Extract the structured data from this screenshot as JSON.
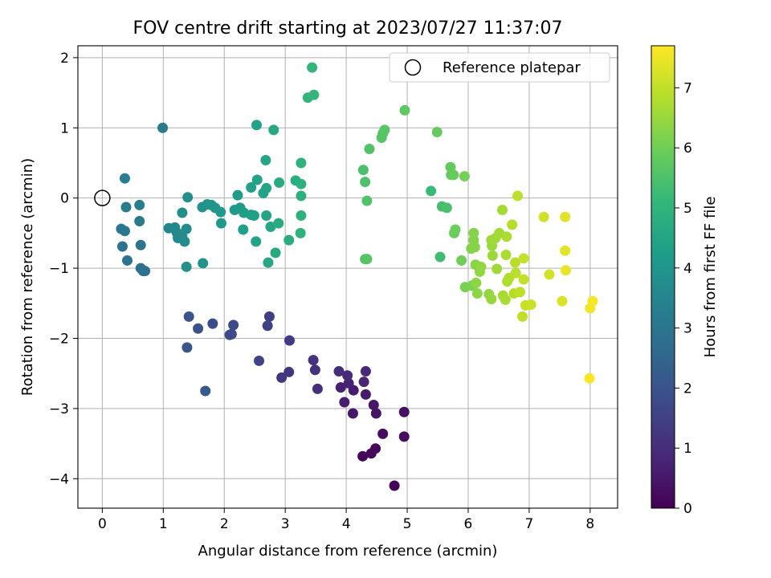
{
  "chart_data": {
    "type": "scatter",
    "title": "FOV centre drift starting at 2023/07/27 11:37:07",
    "xlabel": "Angular distance from reference (arcmin)",
    "ylabel": "Rotation from reference (arcmin)",
    "xlim": [
      -0.4,
      8.45
    ],
    "ylim": [
      -4.42,
      2.17
    ],
    "xticks": [
      0,
      1,
      2,
      3,
      4,
      5,
      6,
      7,
      8
    ],
    "yticks": [
      -4,
      -3,
      -2,
      -1,
      0,
      1,
      2
    ],
    "grid": true,
    "legend": {
      "position": "upper right",
      "entries": [
        {
          "label": "Reference platepar",
          "marker": "open-circle"
        }
      ]
    },
    "reference_point": {
      "x": 0,
      "y": 0
    },
    "colorbar": {
      "label": "Hours from first FF file",
      "range": [
        0,
        7.7
      ],
      "ticks": [
        0,
        1,
        2,
        3,
        4,
        5,
        6,
        7
      ],
      "colormap": "viridis",
      "stops": [
        "#440154",
        "#482878",
        "#3e4989",
        "#31688e",
        "#26828e",
        "#1f9e89",
        "#35b779",
        "#6ece58",
        "#b5de2b",
        "#fde725"
      ]
    },
    "points": [
      {
        "x": 4.79,
        "y": -4.1,
        "h": 0.05
      },
      {
        "x": 4.27,
        "y": -3.68,
        "h": 0.1
      },
      {
        "x": 4.41,
        "y": -3.64,
        "h": 0.15
      },
      {
        "x": 4.48,
        "y": -3.57,
        "h": 0.2
      },
      {
        "x": 4.6,
        "y": -3.36,
        "h": 0.25
      },
      {
        "x": 4.95,
        "y": -3.4,
        "h": 0.3
      },
      {
        "x": 4.95,
        "y": -3.05,
        "h": 0.35
      },
      {
        "x": 4.49,
        "y": -3.07,
        "h": 0.4
      },
      {
        "x": 4.45,
        "y": -2.95,
        "h": 0.45
      },
      {
        "x": 4.11,
        "y": -3.07,
        "h": 0.5
      },
      {
        "x": 4.32,
        "y": -2.8,
        "h": 0.55
      },
      {
        "x": 4.12,
        "y": -2.74,
        "h": 0.6
      },
      {
        "x": 3.97,
        "y": -2.91,
        "h": 0.65
      },
      {
        "x": 3.91,
        "y": -2.7,
        "h": 0.7
      },
      {
        "x": 4.04,
        "y": -2.64,
        "h": 0.75
      },
      {
        "x": 4.29,
        "y": -2.62,
        "h": 0.8
      },
      {
        "x": 4.32,
        "y": -2.47,
        "h": 0.85
      },
      {
        "x": 4.02,
        "y": -2.53,
        "h": 0.9
      },
      {
        "x": 3.88,
        "y": -2.47,
        "h": 0.95
      },
      {
        "x": 3.53,
        "y": -2.72,
        "h": 1.0
      },
      {
        "x": 3.49,
        "y": -2.45,
        "h": 1.1
      },
      {
        "x": 3.46,
        "y": -2.31,
        "h": 1.15
      },
      {
        "x": 3.06,
        "y": -2.48,
        "h": 1.2
      },
      {
        "x": 2.94,
        "y": -2.56,
        "h": 1.25
      },
      {
        "x": 3.07,
        "y": -2.03,
        "h": 1.35
      },
      {
        "x": 2.74,
        "y": -1.69,
        "h": 1.45
      },
      {
        "x": 2.71,
        "y": -1.82,
        "h": 1.5
      },
      {
        "x": 2.57,
        "y": -2.32,
        "h": 1.55
      },
      {
        "x": 2.12,
        "y": -1.94,
        "h": 1.65
      },
      {
        "x": 2.09,
        "y": -1.95,
        "h": 1.7
      },
      {
        "x": 2.15,
        "y": -1.81,
        "h": 1.75
      },
      {
        "x": 1.81,
        "y": -1.79,
        "h": 1.85
      },
      {
        "x": 1.57,
        "y": -1.86,
        "h": 1.95
      },
      {
        "x": 1.42,
        "y": -1.69,
        "h": 2.0
      },
      {
        "x": 1.39,
        "y": -2.13,
        "h": 2.05
      },
      {
        "x": 1.69,
        "y": -2.75,
        "h": 2.15
      },
      {
        "x": 0.67,
        "y": -1.04,
        "h": 2.75
      },
      {
        "x": 0.7,
        "y": -1.04,
        "h": 2.8
      },
      {
        "x": 0.63,
        "y": -1.0,
        "h": 2.85
      },
      {
        "x": 0.41,
        "y": -0.89,
        "h": 2.9
      },
      {
        "x": 0.33,
        "y": -0.69,
        "h": 2.95
      },
      {
        "x": 0.63,
        "y": -0.67,
        "h": 3.0
      },
      {
        "x": 0.37,
        "y": -0.47,
        "h": 3.05
      },
      {
        "x": 0.31,
        "y": -0.44,
        "h": 3.1
      },
      {
        "x": 0.61,
        "y": -0.33,
        "h": 3.15
      },
      {
        "x": 0.39,
        "y": -0.13,
        "h": 3.2
      },
      {
        "x": 0.61,
        "y": -0.1,
        "h": 3.25
      },
      {
        "x": 0.37,
        "y": 0.28,
        "h": 3.3
      },
      {
        "x": 0.99,
        "y": 1.0,
        "h": 3.15
      },
      {
        "x": 1.09,
        "y": -0.43,
        "h": 3.5
      },
      {
        "x": 1.19,
        "y": -0.42,
        "h": 3.55
      },
      {
        "x": 1.22,
        "y": -0.49,
        "h": 3.6
      },
      {
        "x": 1.24,
        "y": -0.57,
        "h": 3.65
      },
      {
        "x": 1.31,
        "y": -0.55,
        "h": 3.7
      },
      {
        "x": 1.35,
        "y": -0.62,
        "h": 3.72
      },
      {
        "x": 1.38,
        "y": -0.44,
        "h": 3.75
      },
      {
        "x": 1.31,
        "y": -0.21,
        "h": 3.78
      },
      {
        "x": 1.4,
        "y": 0.01,
        "h": 3.8
      },
      {
        "x": 1.38,
        "y": -0.98,
        "h": 3.85
      },
      {
        "x": 1.65,
        "y": -0.93,
        "h": 3.95
      },
      {
        "x": 1.64,
        "y": -0.13,
        "h": 3.9
      },
      {
        "x": 1.72,
        "y": -0.09,
        "h": 3.95
      },
      {
        "x": 1.79,
        "y": -0.1,
        "h": 4.0
      },
      {
        "x": 1.85,
        "y": -0.14,
        "h": 4.05
      },
      {
        "x": 1.94,
        "y": -0.2,
        "h": 4.1
      },
      {
        "x": 1.95,
        "y": -0.36,
        "h": 4.12
      },
      {
        "x": 2.17,
        "y": -0.17,
        "h": 4.15
      },
      {
        "x": 2.22,
        "y": 0.04,
        "h": 4.18
      },
      {
        "x": 2.26,
        "y": -0.14,
        "h": 4.2
      },
      {
        "x": 2.32,
        "y": -0.21,
        "h": 4.25
      },
      {
        "x": 2.31,
        "y": -0.45,
        "h": 4.3
      },
      {
        "x": 2.44,
        "y": -0.24,
        "h": 4.32
      },
      {
        "x": 2.49,
        "y": -0.25,
        "h": 4.35
      },
      {
        "x": 2.52,
        "y": -0.62,
        "h": 4.4
      },
      {
        "x": 2.44,
        "y": 0.15,
        "h": 4.38
      },
      {
        "x": 2.54,
        "y": 0.26,
        "h": 4.42
      },
      {
        "x": 2.64,
        "y": 0.07,
        "h": 4.45
      },
      {
        "x": 2.69,
        "y": 0.14,
        "h": 4.48
      },
      {
        "x": 2.69,
        "y": -0.25,
        "h": 4.5
      },
      {
        "x": 2.76,
        "y": -0.41,
        "h": 4.52
      },
      {
        "x": 2.72,
        "y": -0.92,
        "h": 4.55
      },
      {
        "x": 2.68,
        "y": 0.54,
        "h": 4.55
      },
      {
        "x": 2.53,
        "y": 1.04,
        "h": 4.4
      },
      {
        "x": 2.81,
        "y": 0.97,
        "h": 4.6
      },
      {
        "x": 2.84,
        "y": -0.78,
        "h": 4.65
      },
      {
        "x": 2.89,
        "y": -0.36,
        "h": 4.68
      },
      {
        "x": 2.9,
        "y": 0.22,
        "h": 4.7
      },
      {
        "x": 3.06,
        "y": -0.6,
        "h": 4.75
      },
      {
        "x": 3.17,
        "y": 0.25,
        "h": 4.8
      },
      {
        "x": 3.26,
        "y": 0.2,
        "h": 4.85
      },
      {
        "x": 3.26,
        "y": 0.03,
        "h": 4.88
      },
      {
        "x": 3.26,
        "y": -0.25,
        "h": 4.9
      },
      {
        "x": 3.25,
        "y": -0.5,
        "h": 4.92
      },
      {
        "x": 3.26,
        "y": 0.5,
        "h": 4.95
      },
      {
        "x": 3.37,
        "y": 1.43,
        "h": 5.0
      },
      {
        "x": 3.47,
        "y": 1.47,
        "h": 5.05
      },
      {
        "x": 3.44,
        "y": 1.86,
        "h": 5.1
      },
      {
        "x": 4.31,
        "y": -0.87,
        "h": 5.6
      },
      {
        "x": 4.34,
        "y": -0.87,
        "h": 5.65
      },
      {
        "x": 4.34,
        "y": -0.04,
        "h": 5.55
      },
      {
        "x": 4.31,
        "y": 0.23,
        "h": 5.5
      },
      {
        "x": 4.28,
        "y": 0.4,
        "h": 5.45
      },
      {
        "x": 4.38,
        "y": 0.7,
        "h": 5.55
      },
      {
        "x": 4.58,
        "y": 0.86,
        "h": 5.6
      },
      {
        "x": 4.6,
        "y": 0.92,
        "h": 5.62
      },
      {
        "x": 4.63,
        "y": 0.97,
        "h": 5.65
      },
      {
        "x": 4.96,
        "y": 1.25,
        "h": 5.75
      },
      {
        "x": 5.49,
        "y": 0.94,
        "h": 5.85
      },
      {
        "x": 5.39,
        "y": 0.1,
        "h": 5.2
      },
      {
        "x": 5.54,
        "y": -0.84,
        "h": 5.3
      },
      {
        "x": 5.57,
        "y": -0.12,
        "h": 5.4
      },
      {
        "x": 5.65,
        "y": -0.14,
        "h": 5.45
      },
      {
        "x": 5.71,
        "y": 0.44,
        "h": 5.8
      },
      {
        "x": 5.72,
        "y": 0.33,
        "h": 5.85
      },
      {
        "x": 5.76,
        "y": 0.33,
        "h": 5.88
      },
      {
        "x": 5.77,
        "y": -0.5,
        "h": 5.9
      },
      {
        "x": 5.79,
        "y": -0.45,
        "h": 5.95
      },
      {
        "x": 5.89,
        "y": -0.89,
        "h": 6.0
      },
      {
        "x": 5.94,
        "y": 0.31,
        "h": 6.05
      },
      {
        "x": 5.95,
        "y": -1.27,
        "h": 6.1
      },
      {
        "x": 6.06,
        "y": -1.25,
        "h": 6.15
      },
      {
        "x": 6.05,
        "y": -0.72,
        "h": 6.2
      },
      {
        "x": 6.09,
        "y": -0.5,
        "h": 6.25
      },
      {
        "x": 6.09,
        "y": -0.6,
        "h": 6.28
      },
      {
        "x": 6.11,
        "y": -0.7,
        "h": 6.3
      },
      {
        "x": 6.12,
        "y": -0.95,
        "h": 6.32
      },
      {
        "x": 6.13,
        "y": -1.21,
        "h": 6.35
      },
      {
        "x": 6.15,
        "y": -1.36,
        "h": 6.38
      },
      {
        "x": 6.19,
        "y": -1.05,
        "h": 6.4
      },
      {
        "x": 6.21,
        "y": -0.98,
        "h": 6.42
      },
      {
        "x": 6.34,
        "y": -1.37,
        "h": 6.45
      },
      {
        "x": 6.38,
        "y": -1.44,
        "h": 6.48
      },
      {
        "x": 6.38,
        "y": -0.6,
        "h": 6.5
      },
      {
        "x": 6.39,
        "y": -0.68,
        "h": 6.52
      },
      {
        "x": 6.4,
        "y": -0.82,
        "h": 6.55
      },
      {
        "x": 6.45,
        "y": -0.57,
        "h": 6.58
      },
      {
        "x": 6.47,
        "y": -1.01,
        "h": 6.6
      },
      {
        "x": 6.51,
        "y": -0.5,
        "h": 6.62
      },
      {
        "x": 6.56,
        "y": -0.17,
        "h": 6.65
      },
      {
        "x": 6.57,
        "y": -1.39,
        "h": 6.68
      },
      {
        "x": 6.61,
        "y": -1.45,
        "h": 6.7
      },
      {
        "x": 6.62,
        "y": -0.81,
        "h": 6.72
      },
      {
        "x": 6.63,
        "y": -0.55,
        "h": 6.75
      },
      {
        "x": 6.64,
        "y": -1.19,
        "h": 6.78
      },
      {
        "x": 6.67,
        "y": -1.14,
        "h": 6.8
      },
      {
        "x": 6.72,
        "y": -0.38,
        "h": 6.82
      },
      {
        "x": 6.75,
        "y": -1.36,
        "h": 6.85
      },
      {
        "x": 6.77,
        "y": -0.92,
        "h": 6.88
      },
      {
        "x": 6.78,
        "y": -1.07,
        "h": 6.9
      },
      {
        "x": 6.81,
        "y": 0.03,
        "h": 6.92
      },
      {
        "x": 6.85,
        "y": -1.34,
        "h": 6.95
      },
      {
        "x": 6.89,
        "y": -1.69,
        "h": 6.98
      },
      {
        "x": 6.91,
        "y": -1.16,
        "h": 7.0
      },
      {
        "x": 6.91,
        "y": -0.86,
        "h": 7.02
      },
      {
        "x": 6.94,
        "y": -1.53,
        "h": 7.05
      },
      {
        "x": 7.03,
        "y": -1.52,
        "h": 7.1
      },
      {
        "x": 7.24,
        "y": -0.27,
        "h": 7.15
      },
      {
        "x": 7.33,
        "y": -1.09,
        "h": 7.2
      },
      {
        "x": 7.54,
        "y": -1.47,
        "h": 7.3
      },
      {
        "x": 7.59,
        "y": -0.27,
        "h": 7.35
      },
      {
        "x": 7.59,
        "y": -0.75,
        "h": 7.4
      },
      {
        "x": 7.6,
        "y": -1.03,
        "h": 7.45
      },
      {
        "x": 8.0,
        "y": -1.57,
        "h": 7.55
      },
      {
        "x": 8.04,
        "y": -1.47,
        "h": 7.6
      },
      {
        "x": 7.99,
        "y": -2.57,
        "h": 7.65
      }
    ]
  }
}
